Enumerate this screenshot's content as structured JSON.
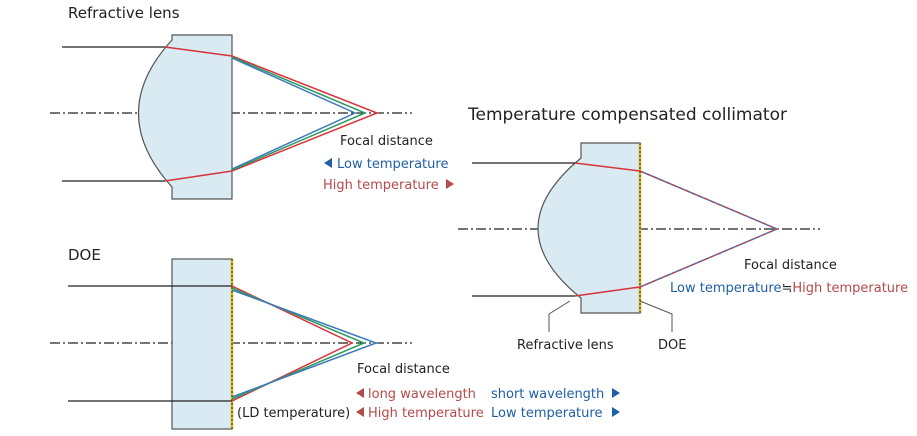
{
  "colors": {
    "lens_fill": "#d9eaf2",
    "lens_stroke": "#555555",
    "ray_black": "#222222",
    "ray_red": "#d9333a",
    "ray_green": "#2e9a62",
    "ray_blue": "#3c7ab8",
    "doe_edge": "#e0b818",
    "low_temp_blue": "#1f5fa8",
    "high_temp_red": "#b54a4a"
  },
  "refractive": {
    "title": "Refractive lens",
    "focal_label": "Focal distance",
    "low_temp": "Low temperature",
    "high_temp": "High temperature"
  },
  "doe": {
    "title": "DOE",
    "focal_label": "Focal distance",
    "long_wavelength": "long wavelength",
    "short_wavelength": "short wavelength",
    "ld_temp": "(LD temperature)",
    "high_temp": "High temperature",
    "low_temp": "Low temperature"
  },
  "collimator": {
    "title": "Temperature compensated collimator",
    "focal_label": "Focal distance",
    "low_temp": "Low temperature",
    "approx": "≒",
    "high_temp": "High temperature",
    "refractive_label": "Refractive lens",
    "doe_label": "DOE"
  }
}
